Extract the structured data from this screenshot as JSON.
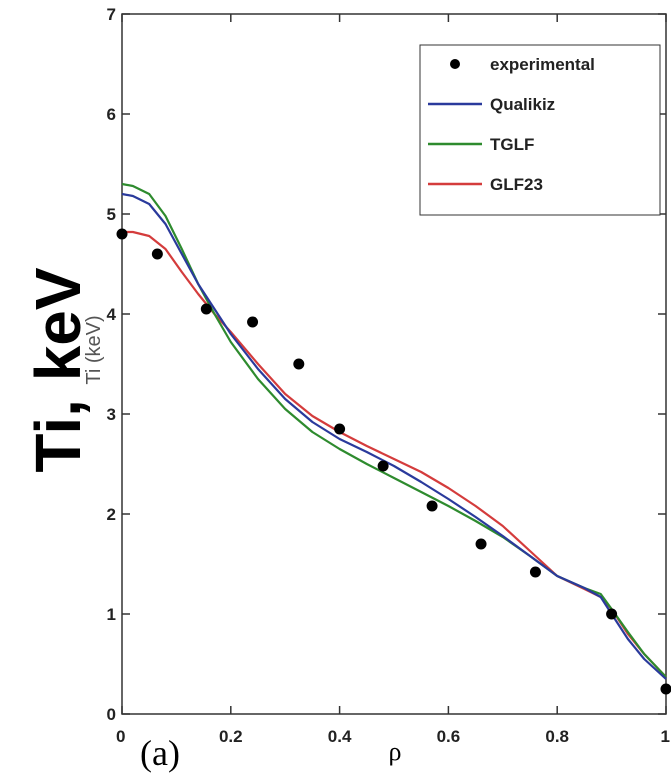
{
  "chart_data": {
    "type": "line",
    "title": "",
    "panel_label": "(a)",
    "xlabel": "ρ",
    "ylabel_overlay": "Ti, keV",
    "ylabel_original": "Ti (keV)",
    "xlim": [
      0,
      1
    ],
    "ylim": [
      0,
      7
    ],
    "xticks": [
      0,
      0.2,
      0.4,
      0.6,
      0.8,
      1
    ],
    "xtick_labels": [
      "0",
      "0.2",
      "0.4",
      "0.6",
      "0.8",
      "1"
    ],
    "yticks": [
      0,
      1,
      2,
      3,
      4,
      5,
      6,
      7
    ],
    "ytick_labels": [
      "0",
      "1",
      "2",
      "3",
      "4",
      "5",
      "6",
      "7"
    ],
    "grid": false,
    "legend_position": "top-right",
    "series": [
      {
        "name": "experimental",
        "kind": "scatter",
        "color": "#000000",
        "x": [
          0.0,
          0.065,
          0.155,
          0.24,
          0.325,
          0.4,
          0.48,
          0.57,
          0.66,
          0.76,
          0.9,
          1.0
        ],
        "y": [
          4.8,
          4.6,
          4.05,
          3.92,
          3.5,
          2.85,
          2.48,
          2.08,
          1.7,
          1.42,
          1.0,
          0.25
        ]
      },
      {
        "name": "Qualikiz",
        "kind": "line",
        "color": "#2a3a9c",
        "x": [
          0.0,
          0.02,
          0.05,
          0.08,
          0.11,
          0.14,
          0.17,
          0.2,
          0.25,
          0.3,
          0.35,
          0.4,
          0.45,
          0.5,
          0.55,
          0.6,
          0.65,
          0.7,
          0.75,
          0.8,
          0.85,
          0.88,
          0.9,
          0.93,
          0.96,
          1.0
        ],
        "y": [
          5.2,
          5.18,
          5.1,
          4.9,
          4.6,
          4.3,
          4.05,
          3.8,
          3.45,
          3.15,
          2.92,
          2.75,
          2.62,
          2.48,
          2.32,
          2.15,
          1.97,
          1.78,
          1.58,
          1.38,
          1.26,
          1.17,
          1.0,
          0.75,
          0.55,
          0.35
        ]
      },
      {
        "name": "TGLF",
        "kind": "line",
        "color": "#2e8b2e",
        "x": [
          0.0,
          0.02,
          0.05,
          0.08,
          0.11,
          0.14,
          0.17,
          0.2,
          0.25,
          0.3,
          0.35,
          0.4,
          0.45,
          0.5,
          0.55,
          0.6,
          0.65,
          0.7,
          0.75,
          0.8,
          0.85,
          0.88,
          0.9,
          0.93,
          0.96,
          1.0
        ],
        "y": [
          5.3,
          5.28,
          5.2,
          4.98,
          4.65,
          4.3,
          4.0,
          3.72,
          3.35,
          3.05,
          2.82,
          2.65,
          2.5,
          2.36,
          2.22,
          2.08,
          1.93,
          1.77,
          1.58,
          1.38,
          1.26,
          1.2,
          1.05,
          0.82,
          0.6,
          0.37
        ]
      },
      {
        "name": "GLF23",
        "kind": "line",
        "color": "#d43c3c",
        "x": [
          0.0,
          0.02,
          0.05,
          0.08,
          0.11,
          0.14,
          0.17,
          0.2,
          0.25,
          0.3,
          0.35,
          0.4,
          0.45,
          0.5,
          0.55,
          0.6,
          0.65,
          0.7,
          0.75,
          0.8,
          0.85,
          0.88,
          0.9,
          0.93,
          0.96,
          1.0
        ],
        "y": [
          4.82,
          4.82,
          4.78,
          4.65,
          4.42,
          4.2,
          4.0,
          3.82,
          3.5,
          3.2,
          2.98,
          2.82,
          2.68,
          2.55,
          2.42,
          2.26,
          2.08,
          1.88,
          1.63,
          1.38,
          1.25,
          1.17,
          1.05,
          0.8,
          0.6,
          0.37
        ]
      }
    ]
  }
}
